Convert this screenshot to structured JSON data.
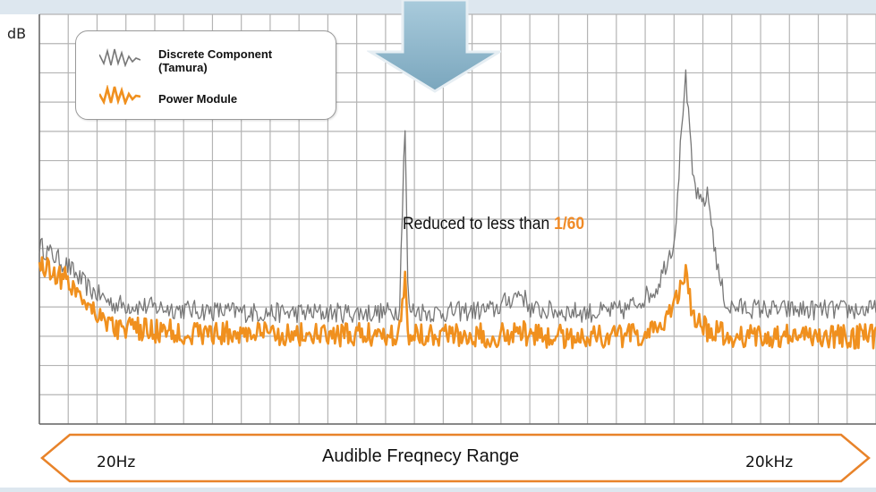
{
  "chart_data": {
    "type": "line",
    "title": "",
    "xlabel": "",
    "ylabel": "dB",
    "x_scale": "log",
    "grid": true,
    "legend_position": "top-left",
    "ylim": [
      0,
      14
    ],
    "series": [
      {
        "name": "Discrete Component (Tamura)",
        "color": "#777777",
        "points": [
          [
            10,
            6.1
          ],
          [
            13,
            5.4
          ],
          [
            16,
            4.6
          ],
          [
            20,
            4.1
          ],
          [
            40,
            3.9
          ],
          [
            80,
            3.8
          ],
          [
            160,
            3.8
          ],
          [
            250,
            3.8
          ],
          [
            290,
            3.9
          ],
          [
            305,
            10.5
          ],
          [
            315,
            3.9
          ],
          [
            400,
            3.8
          ],
          [
            700,
            3.9
          ],
          [
            900,
            4.5
          ],
          [
            1000,
            3.9
          ],
          [
            1800,
            3.8
          ],
          [
            2400,
            3.9
          ],
          [
            3200,
            4.6
          ],
          [
            3800,
            6.3
          ],
          [
            4200,
            12.0
          ],
          [
            4500,
            8.5
          ],
          [
            4800,
            7.5
          ],
          [
            5200,
            7.8
          ],
          [
            5700,
            5.2
          ],
          [
            6200,
            4.0
          ],
          [
            10000,
            3.9
          ],
          [
            20000,
            3.9
          ],
          [
            25000,
            3.9
          ]
        ]
      },
      {
        "name": "Power Module",
        "color": "#f0901e",
        "points": [
          [
            10,
            5.5
          ],
          [
            13,
            4.9
          ],
          [
            16,
            4.1
          ],
          [
            20,
            3.3
          ],
          [
            40,
            3.1
          ],
          [
            80,
            3.1
          ],
          [
            160,
            3.0
          ],
          [
            250,
            3.1
          ],
          [
            290,
            3.1
          ],
          [
            305,
            5.1
          ],
          [
            315,
            3.1
          ],
          [
            400,
            3.1
          ],
          [
            700,
            3.0
          ],
          [
            900,
            3.2
          ],
          [
            1000,
            3.0
          ],
          [
            1800,
            3.0
          ],
          [
            2400,
            3.0
          ],
          [
            3200,
            3.1
          ],
          [
            3800,
            4.2
          ],
          [
            4200,
            5.2
          ],
          [
            4500,
            3.6
          ],
          [
            4800,
            3.4
          ],
          [
            5200,
            3.2
          ],
          [
            5700,
            3.1
          ],
          [
            6200,
            3.0
          ],
          [
            10000,
            3.0
          ],
          [
            20000,
            3.0
          ],
          [
            25000,
            3.0
          ]
        ]
      }
    ],
    "annotations": [
      {
        "text_prefix": "Reduced to less than ",
        "text_highlight": "1/60"
      }
    ],
    "range_band": {
      "label": "Audible Freqnecy Range",
      "start": "20Hz",
      "end": "20kHz"
    }
  },
  "colors": {
    "grid": "#b4b4b4",
    "highlight": "#f08a26",
    "arrow_fill": "#8fb7cc",
    "range_arrow": "#e8832a"
  }
}
